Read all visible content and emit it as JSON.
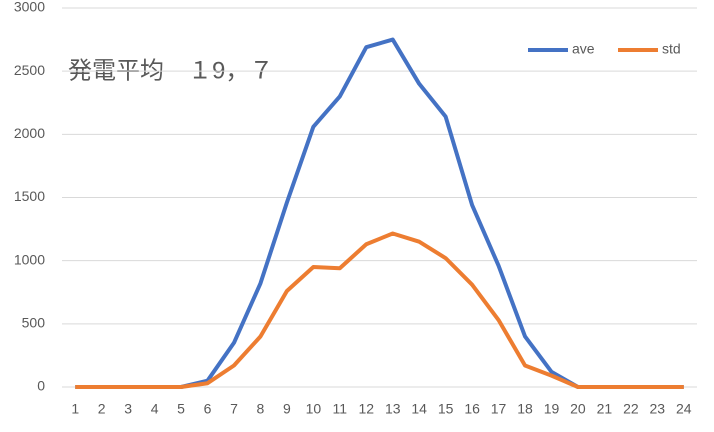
{
  "chart_data": {
    "type": "line",
    "title": "発電平均　１9，７",
    "categories": [
      "1",
      "2",
      "3",
      "4",
      "5",
      "6",
      "7",
      "8",
      "9",
      "10",
      "11",
      "12",
      "13",
      "14",
      "15",
      "16",
      "17",
      "18",
      "19",
      "20",
      "21",
      "22",
      "23",
      "24"
    ],
    "series": [
      {
        "name": "ave",
        "color": "#4472c4",
        "values": [
          0,
          0,
          0,
          0,
          0,
          50,
          350,
          820,
          1460,
          2060,
          2300,
          2690,
          2750,
          2400,
          2140,
          1440,
          960,
          400,
          120,
          0,
          0,
          0,
          0,
          0
        ]
      },
      {
        "name": "std",
        "color": "#ed7d31",
        "values": [
          0,
          0,
          0,
          0,
          0,
          30,
          170,
          400,
          760,
          950,
          940,
          1130,
          1215,
          1150,
          1020,
          810,
          530,
          170,
          90,
          0,
          0,
          0,
          0,
          0
        ]
      }
    ],
    "ylim": [
      0,
      3000
    ],
    "yticks": [
      0,
      500,
      1000,
      1500,
      2000,
      2500,
      3000
    ],
    "grid": true,
    "legend": "top-right"
  }
}
